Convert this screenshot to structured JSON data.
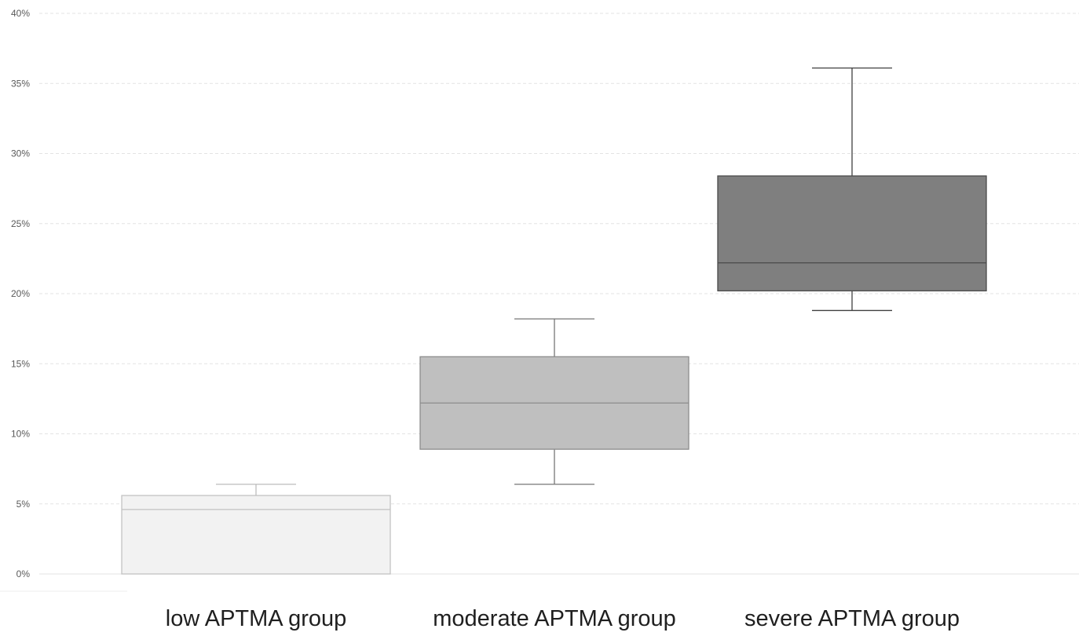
{
  "chart_data": {
    "type": "box",
    "title": "",
    "xlabel": "",
    "ylabel": "",
    "ylim": [
      0,
      0.4
    ],
    "y_tick_values": [
      0,
      0.05,
      0.1,
      0.15,
      0.2,
      0.25,
      0.3,
      0.35,
      0.4
    ],
    "y_tick_labels": [
      "0%",
      "5%",
      "10%",
      "15%",
      "20%",
      "25%",
      "30%",
      "35%",
      "40%"
    ],
    "grid": true,
    "legend": "none",
    "categories": [
      "low APTMA group",
      "moderate APTMA group",
      "severe APTMA group"
    ],
    "series": [
      {
        "whisker_low": 0.0,
        "q1": 0.0,
        "median": 0.046,
        "q3": 0.056,
        "whisker_high": 0.064
      },
      {
        "whisker_low": 0.064,
        "q1": 0.089,
        "median": 0.122,
        "q3": 0.155,
        "whisker_high": 0.182
      },
      {
        "whisker_low": 0.188,
        "q1": 0.202,
        "median": 0.222,
        "q3": 0.284,
        "whisker_high": 0.361
      }
    ],
    "colors": {
      "box_fills": [
        "#f2f2f2",
        "#bfbfbf",
        "#7f7f7f"
      ],
      "box_strokes": [
        "#c2c2c2",
        "#8c8c8c",
        "#4a4a4a"
      ],
      "whiskers": [
        "#bdbdbd",
        "#767676",
        "#404040"
      ],
      "gridline": "#e3e3e3",
      "tick_text": "#595959"
    }
  }
}
